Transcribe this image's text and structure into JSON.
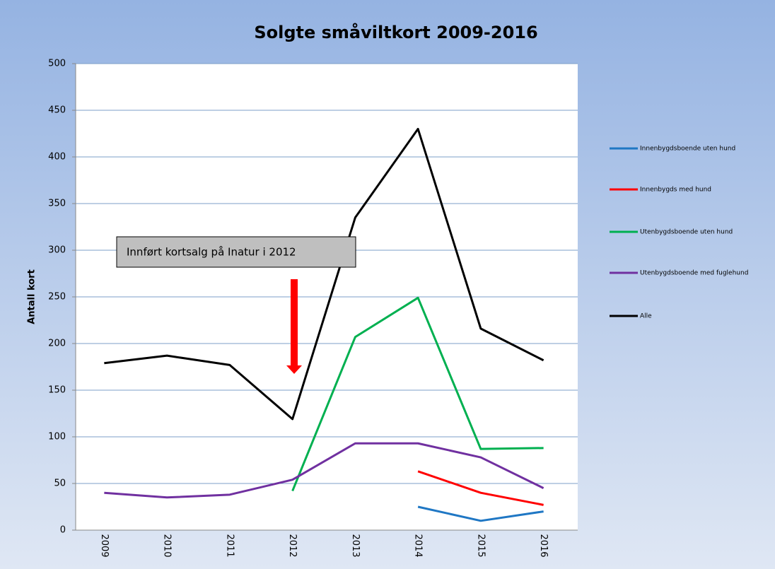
{
  "chart_data": {
    "type": "line",
    "title": "Solgte småviltkort 2009-2016",
    "y_label": "Antall kort",
    "annotation": "Innført kortsalg på Inatur i 2012",
    "categories": [
      "2009",
      "2010",
      "2011",
      "2012",
      "2013",
      "2014",
      "2015",
      "2016"
    ],
    "series": [
      {
        "name": "Innenbygdsboende uten hund",
        "color": "#1f77c4",
        "values": [
          null,
          null,
          null,
          null,
          null,
          25,
          10,
          20
        ]
      },
      {
        "name": "Innenbygds med hund",
        "color": "#ff0000",
        "values": [
          null,
          null,
          null,
          null,
          null,
          63,
          40,
          27
        ]
      },
      {
        "name": "Utenbygdsboende uten hund",
        "color": "#00b050",
        "values": [
          null,
          null,
          null,
          42,
          207,
          249,
          87,
          88
        ]
      },
      {
        "name": "Utenbygdsboende med fuglehund",
        "color": "#7030a0",
        "values": [
          40,
          35,
          38,
          54,
          93,
          93,
          78,
          45
        ]
      },
      {
        "name": "Alle",
        "color": "#000000",
        "values": [
          179,
          187,
          177,
          119,
          335,
          430,
          216,
          182
        ]
      }
    ],
    "ylim": [
      0,
      500
    ],
    "yticks": [
      0,
      50,
      100,
      150,
      200,
      250,
      300,
      350,
      400,
      450,
      500
    ],
    "grid": true,
    "legend": "right"
  }
}
